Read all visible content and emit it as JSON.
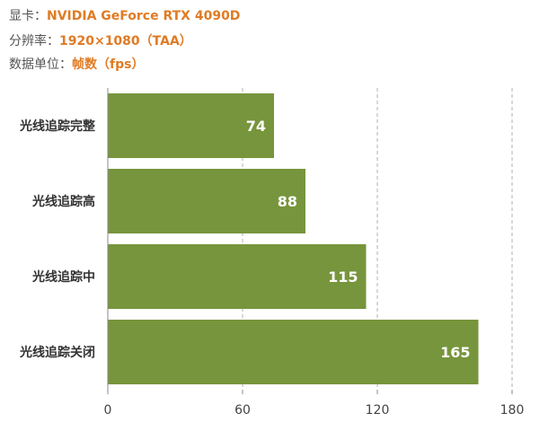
{
  "header": {
    "gpu": {
      "label": "显卡：",
      "value": "NVIDIA GeForce RTX 4090D"
    },
    "resolution": {
      "label": "分辨率：",
      "value": "1920×1080（TAA）"
    },
    "unit": {
      "label": "数据单位：",
      "value": "帧数（fps）"
    }
  },
  "colors": {
    "bar": "#77953c",
    "accent": "#e07b24",
    "grid": "#b0b0b0",
    "axis": "#888888"
  },
  "chart_data": {
    "type": "bar",
    "orientation": "horizontal",
    "categories": [
      "光线追踪完整",
      "光线追踪高",
      "光线追踪中",
      "光线追踪关闭"
    ],
    "values": [
      74,
      88,
      115,
      165
    ],
    "xlim": [
      0,
      180
    ],
    "xticks": [
      0,
      60,
      120,
      180
    ],
    "grid": true,
    "legend": "none"
  }
}
